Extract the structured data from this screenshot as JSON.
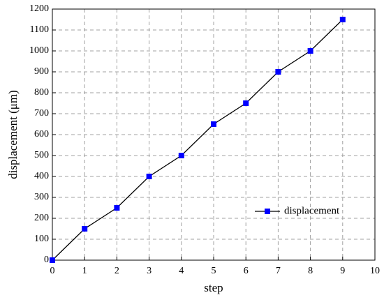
{
  "chart_data": {
    "type": "line",
    "xlabel": "step",
    "ylabel": "displacement (μm)",
    "x": [
      0,
      1,
      2,
      3,
      4,
      5,
      6,
      7,
      8,
      9
    ],
    "series": [
      {
        "name": "displacement",
        "color": "#0000ff",
        "line_color": "#000000",
        "marker": "square",
        "values": [
          0,
          150,
          250,
          400,
          500,
          650,
          750,
          900,
          1000,
          1150
        ]
      }
    ],
    "xlim": [
      0,
      10
    ],
    "xticks": [
      0,
      1,
      2,
      3,
      4,
      5,
      6,
      7,
      8,
      9,
      10
    ],
    "ylim": [
      0,
      1200
    ],
    "yticks": [
      0,
      100,
      200,
      300,
      400,
      500,
      600,
      700,
      800,
      900,
      1000,
      1100,
      1200
    ],
    "grid": true,
    "legend": "lower right"
  }
}
